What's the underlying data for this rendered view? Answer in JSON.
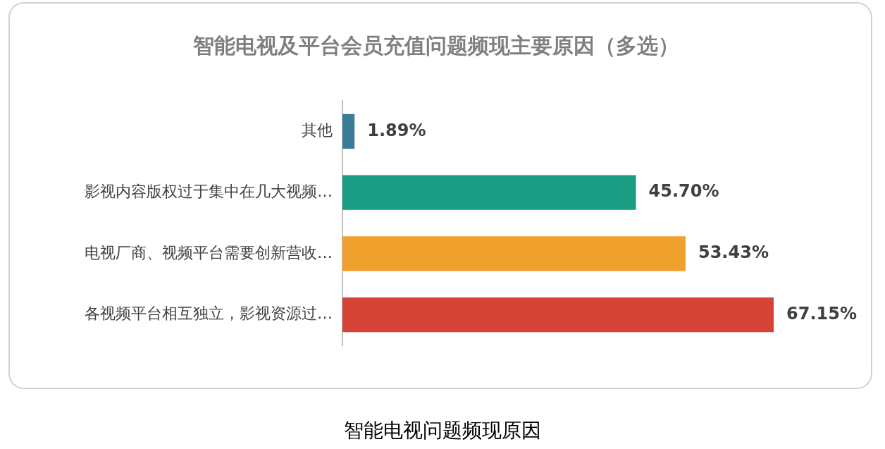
{
  "chart_data": {
    "type": "bar",
    "orientation": "horizontal",
    "title": "智能电视及平台会员充值问题频现主要原因（多选）",
    "categories": [
      "其他",
      "影视内容版权过于集中在几大视频…",
      "电视厂商、视频平台需要创新营收…",
      "各视频平台相互独立，影视资源过…"
    ],
    "values": [
      1.89,
      45.7,
      53.43,
      67.15
    ],
    "colors": [
      "#3a7d98",
      "#1a9c82",
      "#f0a02c",
      "#d44333"
    ],
    "value_labels": [
      "1.89%",
      "45.70%",
      "53.43%",
      "67.15%"
    ],
    "legend": false,
    "annotations": [
      "智能电视问题频现原因"
    ]
  }
}
